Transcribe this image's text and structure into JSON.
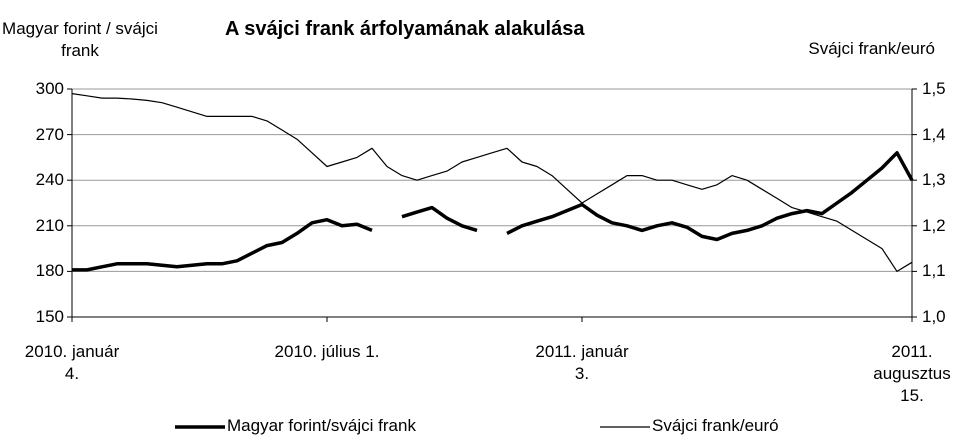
{
  "chart_data": {
    "type": "line",
    "title": "A svájci frank árfolyamának alakulása",
    "y_label": "Magyar forint / svájci frank",
    "y2_label": "Svájci frank/euró",
    "categories": [
      "2010. január 4.",
      null,
      null,
      null,
      null,
      null,
      null,
      null,
      null,
      null,
      null,
      null,
      null,
      null,
      null,
      null,
      null,
      "2010. július 1.",
      null,
      null,
      null,
      null,
      null,
      null,
      null,
      null,
      null,
      null,
      null,
      null,
      null,
      null,
      null,
      null,
      "2011. január 3.",
      null,
      null,
      null,
      null,
      null,
      null,
      null,
      null,
      null,
      null,
      null,
      null,
      null,
      null,
      null,
      null,
      null,
      null,
      null,
      null,
      null,
      "2011. augusztus 15."
    ],
    "series": [
      {
        "name": "Magyar forint/svájci frank",
        "color": "#000000",
        "width": 3.5,
        "axis": "y",
        "values": [
          181,
          181,
          183,
          185,
          185,
          185,
          184,
          183,
          184,
          185,
          185,
          187,
          192,
          197,
          199,
          205,
          212,
          214,
          210,
          211,
          207,
          null,
          216,
          219,
          222,
          215,
          210,
          207,
          null,
          205,
          210,
          213,
          216,
          220,
          224,
          217,
          212,
          210,
          207,
          210,
          212,
          209,
          203,
          201,
          205,
          207,
          210,
          215,
          218,
          220,
          218,
          225,
          232,
          240,
          248,
          258,
          240
        ]
      },
      {
        "name": "Svájci frank/euró",
        "color": "#000000",
        "width": 1.2,
        "axis": "y2",
        "values": [
          1.49,
          1.485,
          1.48,
          1.48,
          1.478,
          1.475,
          1.47,
          1.46,
          1.45,
          1.44,
          1.44,
          1.44,
          1.44,
          1.43,
          1.41,
          1.39,
          1.36,
          1.33,
          1.34,
          1.35,
          1.37,
          1.33,
          1.31,
          1.3,
          1.31,
          1.32,
          1.34,
          1.35,
          1.36,
          1.37,
          1.34,
          1.33,
          1.31,
          1.28,
          1.25,
          1.27,
          1.29,
          1.31,
          1.31,
          1.3,
          1.3,
          1.29,
          1.28,
          1.29,
          1.31,
          1.3,
          1.28,
          1.26,
          1.24,
          1.23,
          1.22,
          1.21,
          1.19,
          1.17,
          1.15,
          1.1,
          1.12
        ]
      }
    ],
    "ylim": [
      150,
      300
    ],
    "yticks": [
      150,
      180,
      210,
      240,
      270,
      300
    ],
    "y2lim": [
      1.0,
      1.5
    ],
    "y2ticks": [
      {
        "value": 1.0,
        "label": "1,0"
      },
      {
        "value": 1.1,
        "label": "1,1"
      },
      {
        "value": 1.2,
        "label": "1,2"
      },
      {
        "value": 1.3,
        "label": "1,3"
      },
      {
        "value": 1.4,
        "label": "1,4"
      },
      {
        "value": 1.5,
        "label": "1,5"
      }
    ],
    "grid": true,
    "legend": "bottom"
  }
}
